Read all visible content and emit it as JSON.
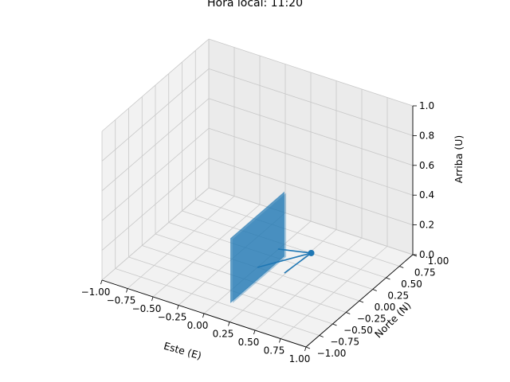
{
  "chart_data": {
    "type": "3d-quiver",
    "title": "Hora local: 11:20",
    "xlabel": "Este (E)",
    "ylabel": "Norte (N)",
    "zlabel": "Arriba (U)",
    "xlim": [
      -1.0,
      1.0
    ],
    "ylim": [
      -1.0,
      1.0
    ],
    "zlim": [
      0.0,
      1.0
    ],
    "xticks": [
      "−1.00",
      "−0.75",
      "−0.50",
      "−0.25",
      "0.00",
      "0.25",
      "0.50",
      "0.75",
      "1.00"
    ],
    "yticks": [
      "−1.00",
      "−0.75",
      "−0.50",
      "−0.25",
      "0.00",
      "0.25",
      "0.50",
      "0.75",
      "1.00"
    ],
    "zticks": [
      "0.0",
      "0.2",
      "0.4",
      "0.6",
      "0.8",
      "1.0"
    ],
    "grid": true,
    "panel": {
      "x": [
        0.0,
        0.0
      ],
      "y": [
        -0.5,
        0.5
      ],
      "z": [
        -0.08,
        0.35
      ]
    },
    "arrow": {
      "start": [
        0.0,
        0.0,
        0.0
      ],
      "end": [
        0.02,
        0.97,
        -0.2
      ]
    },
    "sun_marker": [
      0.02,
      0.97,
      -0.2
    ],
    "color": "#1f77b4"
  }
}
